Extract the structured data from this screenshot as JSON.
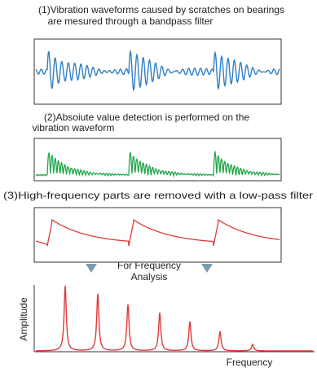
{
  "steps": [
    {
      "lines": [
        "(1)Vibration waveforms caused by scratches on bearings",
        "are mesured through a bandpass filter"
      ]
    },
    {
      "lines": [
        "(2)Absoiute value detection is performed on the",
        "vibration waveform"
      ]
    },
    {
      "lines": [
        "(3)High-frequency parts are removed with a low-pass filter"
      ]
    }
  ],
  "analysis_label": [
    "For Frequency",
    "Analysis"
  ],
  "spectrum": {
    "y_label": "Amplitude",
    "x_label": "Frequency"
  }
}
